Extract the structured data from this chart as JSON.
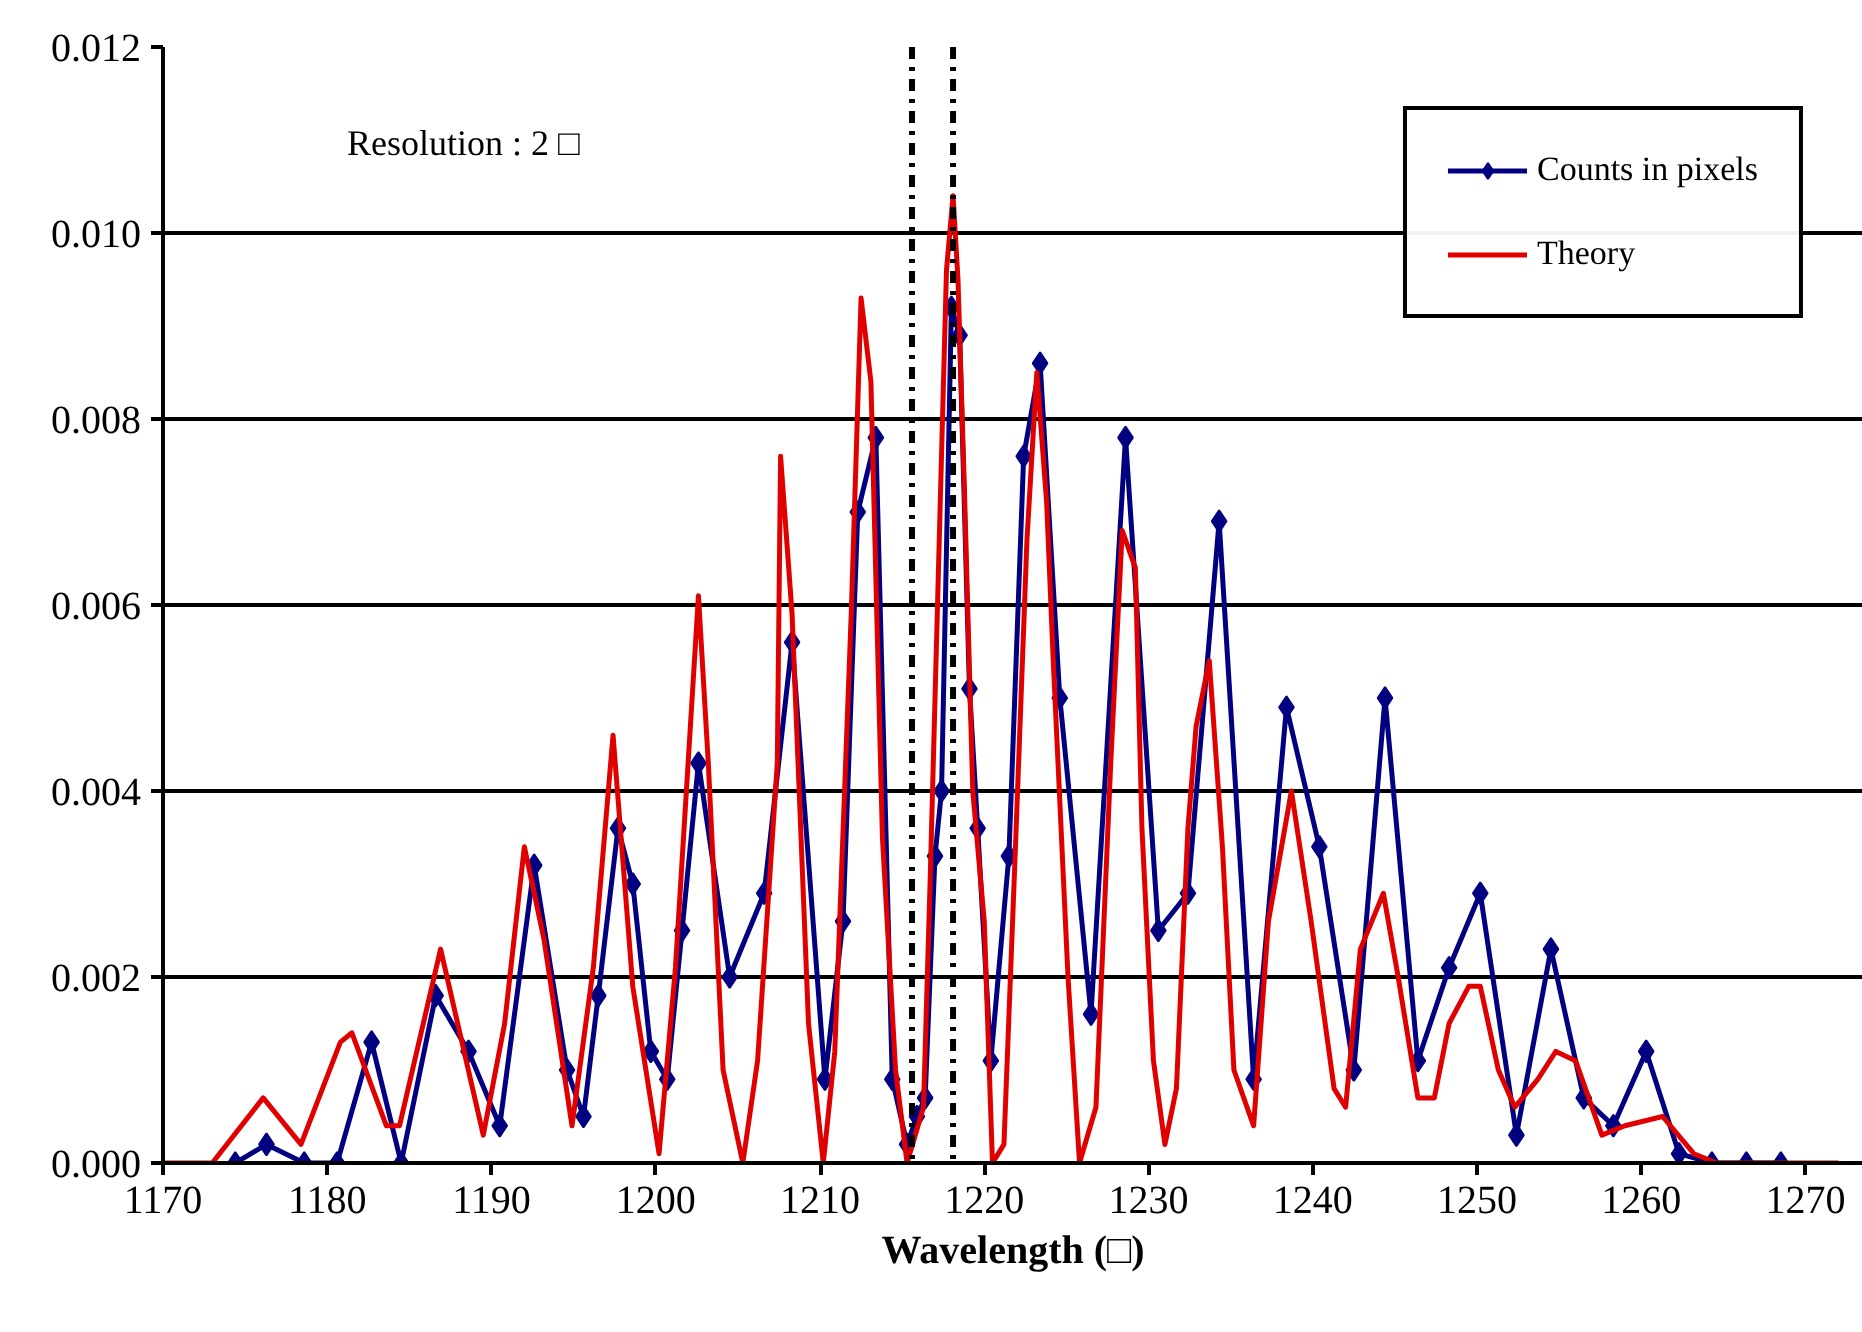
{
  "chart_data": {
    "type": "line",
    "xlabel": "Wavelength (□)",
    "annotations": [
      "Resolution : 2 □"
    ],
    "xlim": [
      1170,
      1273.5
    ],
    "xticks": [
      1170,
      1180,
      1190,
      1200,
      1210,
      1220,
      1230,
      1240,
      1250,
      1260,
      1270
    ],
    "ylim": [
      0,
      0.012
    ],
    "yticks": [
      {
        "value": 0,
        "label": "0.000"
      },
      {
        "value": 0.002,
        "label": "0.002"
      },
      {
        "value": 0.004,
        "label": "0.004"
      },
      {
        "value": 0.006,
        "label": "0.006"
      },
      {
        "value": 0.008,
        "label": "0.008"
      },
      {
        "value": 0.01,
        "label": "0.010"
      },
      {
        "value": 0.012,
        "label": "0.012"
      }
    ],
    "grid": "y",
    "legend": "top right",
    "line_style": "solid",
    "ref_lines": [
      {
        "axis": "x",
        "value": 1215.6,
        "line_style": "dashdot",
        "color": "#000000"
      },
      {
        "axis": "x",
        "value": 1218.1,
        "line_style": "dashdot",
        "color": "#000000"
      }
    ],
    "series": [
      {
        "name": "Counts in pixels",
        "color": "#000080",
        "marker": "diamond",
        "x": [
          1174.4,
          1176.3,
          1178.6,
          1180.6,
          1182.7,
          1184.5,
          1186.6,
          1188.6,
          1190.5,
          1192.6,
          1194.6,
          1195.6,
          1196.5,
          1197.7,
          1198.6,
          1199.7,
          1200.7,
          1201.6,
          1202.6,
          1204.5,
          1206.6,
          1208.3,
          1210.3,
          1211.4,
          1212.3,
          1213.4,
          1214.4,
          1215.3,
          1215.9,
          1216.4,
          1217.0,
          1217.4,
          1218.0,
          1218.5,
          1219.1,
          1219.6,
          1220.4,
          1221.5,
          1222.4,
          1223.4,
          1224.6,
          1226.5,
          1228.6,
          1230.6,
          1232.4,
          1234.3,
          1236.4,
          1238.4,
          1240.4,
          1242.5,
          1244.4,
          1246.4,
          1248.3,
          1250.2,
          1252.4,
          1254.5,
          1256.5,
          1258.3,
          1260.3,
          1262.3,
          1264.3,
          1266.4,
          1268.5
        ],
        "values": [
          0,
          0.0002,
          0,
          0,
          0.0013,
          0,
          0.0018,
          0.0012,
          0.0004,
          0.0032,
          0.001,
          0.0005,
          0.0018,
          0.0036,
          0.003,
          0.0012,
          0.0009,
          0.0025,
          0.0043,
          0.002,
          0.0029,
          0.0056,
          0.0009,
          0.0026,
          0.007,
          0.0078,
          0.0009,
          0.0002,
          0.0005,
          0.0007,
          0.0033,
          0.004,
          0.0092,
          0.0089,
          0.0051,
          0.0036,
          0.0011,
          0.0033,
          0.0076,
          0.0086,
          0.005,
          0.0016,
          0.0078,
          0.0025,
          0.0029,
          0.0069,
          0.0009,
          0.0049,
          0.0034,
          0.001,
          0.005,
          0.0011,
          0.0021,
          0.0029,
          0.0003,
          0.0023,
          0.0007,
          0.0004,
          0.0012,
          0.0001,
          0,
          0,
          0
        ]
      },
      {
        "name": "Theory",
        "color": "#e00000",
        "marker": "none",
        "x": [
          1170,
          1173.0,
          1176.1,
          1178.4,
          1180.8,
          1181.5,
          1183.6,
          1184.4,
          1186.9,
          1189.5,
          1190.8,
          1192.0,
          1193.2,
          1194.9,
          1196.2,
          1197.4,
          1198.6,
          1200.2,
          1201.2,
          1202.6,
          1203.2,
          1204.1,
          1205.3,
          1206.2,
          1207.4,
          1207.6,
          1208.3,
          1209.3,
          1210.2,
          1210.9,
          1211.9,
          1212.5,
          1213.1,
          1213.8,
          1214.6,
          1215.3,
          1216.3,
          1216.7,
          1217.2,
          1217.7,
          1218.1,
          1218.4,
          1218.8,
          1219.3,
          1220.0,
          1220.5,
          1221.2,
          1221.9,
          1222.6,
          1223.2,
          1223.8,
          1224.2,
          1225.1,
          1225.8,
          1226.8,
          1227.7,
          1228.4,
          1229.2,
          1229.6,
          1230.3,
          1231.0,
          1231.7,
          1232.4,
          1232.9,
          1233.7,
          1234.5,
          1235.2,
          1236.4,
          1237.3,
          1238.7,
          1239.9,
          1241.3,
          1242.0,
          1242.9,
          1244.3,
          1245.2,
          1246.4,
          1247.4,
          1248.3,
          1249.5,
          1250.2,
          1251.3,
          1252.3,
          1253.7,
          1254.8,
          1256.0,
          1257.6,
          1259.0,
          1261.3,
          1263.2,
          1264.6,
          1272.0
        ],
        "values": [
          0,
          0,
          0.0007,
          0.0002,
          0.0013,
          0.0014,
          0.0004,
          0.0004,
          0.0023,
          0.0003,
          0.0015,
          0.0034,
          0.0024,
          0.0004,
          0.0021,
          0.0046,
          0.0019,
          0.0001,
          0.0021,
          0.0061,
          0.0043,
          0.001,
          0,
          0.0011,
          0.0043,
          0.0076,
          0.0059,
          0.0015,
          0,
          0.0012,
          0.0059,
          0.0093,
          0.0084,
          0.0035,
          0.001,
          0,
          0.0006,
          0.003,
          0.0063,
          0.0096,
          0.0104,
          0.0095,
          0.0072,
          0.004,
          0.0026,
          0,
          0.0002,
          0.0034,
          0.0067,
          0.0085,
          0.0071,
          0.0054,
          0.002,
          0,
          0.0006,
          0.0043,
          0.0068,
          0.0064,
          0.0036,
          0.0011,
          0.0002,
          0.0008,
          0.0036,
          0.0047,
          0.0054,
          0.0034,
          0.001,
          0.0004,
          0.0026,
          0.004,
          0.0026,
          0.0008,
          0.0006,
          0.0023,
          0.0029,
          0.002,
          0.0007,
          0.0007,
          0.0015,
          0.0019,
          0.0019,
          0.001,
          0.0006,
          0.0009,
          0.0012,
          0.0011,
          0.0003,
          0.0004,
          0.0005,
          0.0001,
          0,
          0
        ]
      }
    ]
  }
}
